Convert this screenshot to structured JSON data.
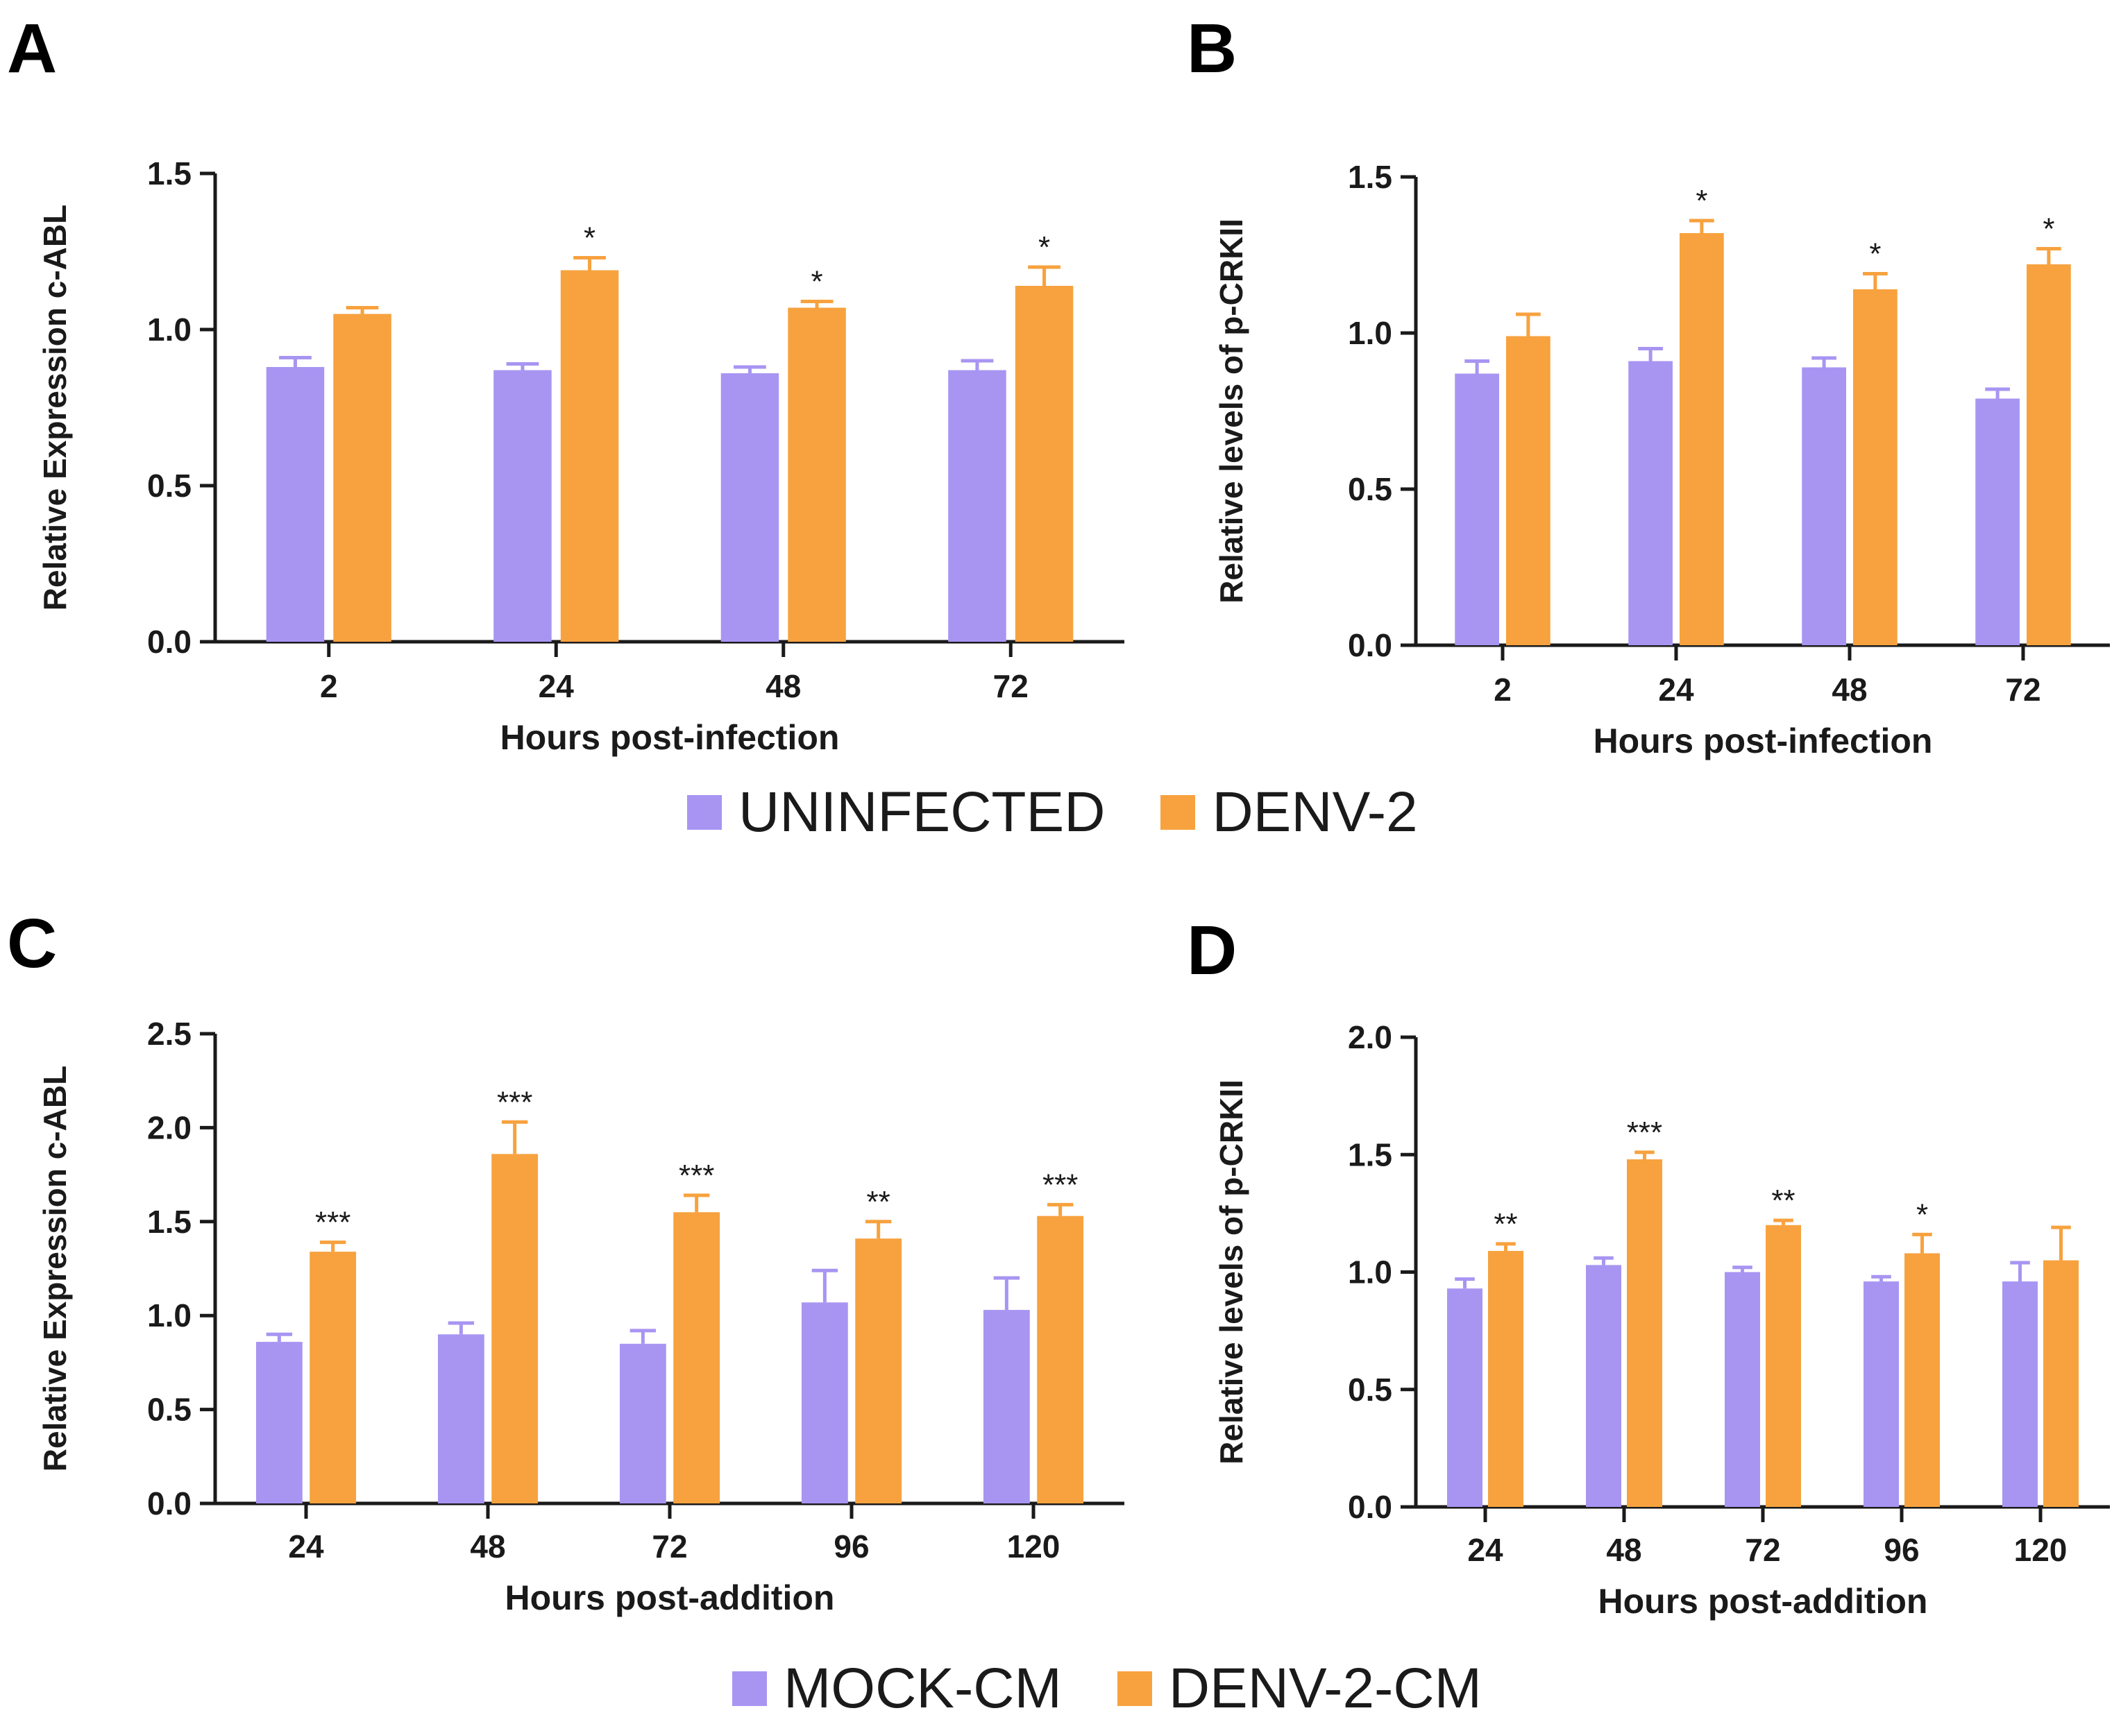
{
  "panels": [
    {
      "letter": "A"
    },
    {
      "letter": "B"
    },
    {
      "letter": "C"
    },
    {
      "letter": "D"
    }
  ],
  "legends": [
    {
      "items": [
        {
          "label": "UNINFECTED",
          "color": "#a895f2"
        },
        {
          "label": "DENV-2",
          "color": "#f7a23f"
        }
      ]
    },
    {
      "items": [
        {
          "label": "MOCK-CM",
          "color": "#a895f2"
        },
        {
          "label": "DENV-2-CM",
          "color": "#f7a23f"
        }
      ]
    }
  ],
  "chart_data": [
    {
      "type": "bar",
      "panel": "A",
      "title": "",
      "xlabel": "Hours post-infection",
      "ylabel": "Relative Expression c-ABL",
      "ylim": [
        0,
        1.5
      ],
      "yticks": [
        "0.0",
        "0.5",
        "1.0",
        "1.5"
      ],
      "categories": [
        "2",
        "24",
        "48",
        "72"
      ],
      "series": [
        {
          "name": "UNINFECTED",
          "color": "#a895f2",
          "values": [
            0.88,
            0.87,
            0.86,
            0.87
          ],
          "errors": [
            0.03,
            0.02,
            0.02,
            0.03
          ]
        },
        {
          "name": "DENV-2",
          "color": "#f7a23f",
          "values": [
            1.05,
            1.19,
            1.07,
            1.14
          ],
          "errors": [
            0.02,
            0.04,
            0.02,
            0.06
          ]
        }
      ],
      "significance": [
        "",
        "*",
        "*",
        "*"
      ]
    },
    {
      "type": "bar",
      "panel": "B",
      "title": "",
      "xlabel": "Hours post-infection",
      "ylabel": "Relative levels of p-CRKII",
      "ylim": [
        0,
        1.5
      ],
      "yticks": [
        "0.0",
        "0.5",
        "1.0",
        "1.5"
      ],
      "categories": [
        "2",
        "24",
        "48",
        "72"
      ],
      "series": [
        {
          "name": "UNINFECTED",
          "color": "#a895f2",
          "values": [
            0.87,
            0.91,
            0.89,
            0.79
          ],
          "errors": [
            0.04,
            0.04,
            0.03,
            0.03
          ]
        },
        {
          "name": "DENV-2",
          "color": "#f7a23f",
          "values": [
            0.99,
            1.32,
            1.14,
            1.22
          ],
          "errors": [
            0.07,
            0.04,
            0.05,
            0.05
          ]
        }
      ],
      "significance": [
        "",
        "*",
        "*",
        "*"
      ]
    },
    {
      "type": "bar",
      "panel": "C",
      "title": "",
      "xlabel": "Hours post-addition",
      "ylabel": "Relative Expression c-ABL",
      "ylim": [
        0,
        2.5
      ],
      "yticks": [
        "0.0",
        "0.5",
        "1.0",
        "1.5",
        "2.0",
        "2.5"
      ],
      "categories": [
        "24",
        "48",
        "72",
        "96",
        "120"
      ],
      "series": [
        {
          "name": "MOCK-CM",
          "color": "#a895f2",
          "values": [
            0.86,
            0.9,
            0.85,
            1.07,
            1.03
          ],
          "errors": [
            0.04,
            0.06,
            0.07,
            0.17,
            0.17
          ]
        },
        {
          "name": "DENV-2-CM",
          "color": "#f7a23f",
          "values": [
            1.34,
            1.86,
            1.55,
            1.41,
            1.53
          ],
          "errors": [
            0.05,
            0.17,
            0.09,
            0.09,
            0.06
          ]
        }
      ],
      "significance": [
        "***",
        "***",
        "***",
        "**",
        "***"
      ]
    },
    {
      "type": "bar",
      "panel": "D",
      "title": "",
      "xlabel": "Hours post-addition",
      "ylabel": "Relative levels of p-CRKII",
      "ylim": [
        0,
        2.0
      ],
      "yticks": [
        "0.0",
        "0.5",
        "1.0",
        "1.5",
        "2.0"
      ],
      "categories": [
        "24",
        "48",
        "72",
        "96",
        "120"
      ],
      "series": [
        {
          "name": "MOCK-CM",
          "color": "#a895f2",
          "values": [
            0.93,
            1.03,
            1.0,
            0.96,
            0.96
          ],
          "errors": [
            0.04,
            0.03,
            0.02,
            0.02,
            0.08
          ]
        },
        {
          "name": "DENV-2-CM",
          "color": "#f7a23f",
          "values": [
            1.09,
            1.48,
            1.2,
            1.08,
            1.05
          ],
          "errors": [
            0.03,
            0.03,
            0.02,
            0.08,
            0.14
          ]
        }
      ],
      "significance": [
        "**",
        "***",
        "**",
        "*",
        ""
      ]
    }
  ]
}
